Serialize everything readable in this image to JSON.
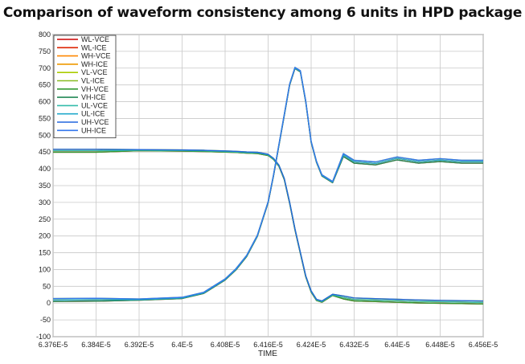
{
  "chart_data": {
    "type": "line",
    "title": "Comparison of waveform consistency among 6 units in HPD package",
    "xlabel": "TIME",
    "ylabel": "",
    "xlim": [
      6.376e-05,
      6.456e-05
    ],
    "ylim": [
      -100,
      800
    ],
    "x_ticks": [
      "6.376E-5",
      "6.384E-5",
      "6.392E-5",
      "6.4E-5",
      "6.408E-5",
      "6.416E-5",
      "6.424E-5",
      "6.432E-5",
      "6.44E-5",
      "6.448E-5",
      "6.456E-5"
    ],
    "y_ticks": [
      -100,
      -50,
      0,
      50,
      100,
      150,
      200,
      250,
      300,
      350,
      400,
      450,
      500,
      550,
      600,
      650,
      700,
      750,
      800
    ],
    "grid": true,
    "legend_position": "top-left",
    "x_shared": [
      6.376e-05,
      6.384e-05,
      6.392e-05,
      6.4e-05,
      6.404e-05,
      6.408e-05,
      6.41e-05,
      6.412e-05,
      6.414e-05,
      6.416e-05,
      6.417e-05,
      6.418e-05,
      6.419e-05,
      6.42e-05,
      6.421e-05,
      6.422e-05,
      6.423e-05,
      6.424e-05,
      6.425e-05,
      6.426e-05,
      6.428e-05,
      6.43e-05,
      6.432e-05,
      6.436e-05,
      6.44e-05,
      6.444e-05,
      6.448e-05,
      6.452e-05,
      6.456e-05
    ],
    "series": [
      {
        "name": "WL-VCE",
        "color": "#cc0000",
        "kind": "vce"
      },
      {
        "name": "WL-ICE",
        "color": "#dd2200",
        "kind": "ice"
      },
      {
        "name": "WH-VCE",
        "color": "#ff8800",
        "kind": "vce"
      },
      {
        "name": "WH-ICE",
        "color": "#ee9900",
        "kind": "ice"
      },
      {
        "name": "VL-VCE",
        "color": "#aacc00",
        "kind": "vce"
      },
      {
        "name": "VL-ICE",
        "color": "#88bb22",
        "kind": "ice"
      },
      {
        "name": "VH-VCE",
        "color": "#339933",
        "kind": "vce"
      },
      {
        "name": "VH-ICE",
        "color": "#228855",
        "kind": "ice"
      },
      {
        "name": "UL-VCE",
        "color": "#33bbaa",
        "kind": "vce"
      },
      {
        "name": "UL-ICE",
        "color": "#22aacc",
        "kind": "ice"
      },
      {
        "name": "UH-VCE",
        "color": "#2266dd",
        "kind": "vce"
      },
      {
        "name": "UH-ICE",
        "color": "#3377ee",
        "kind": "ice"
      }
    ],
    "vce_profile": [
      455,
      455,
      456,
      455,
      454,
      452,
      451,
      449,
      448,
      442,
      430,
      410,
      370,
      300,
      220,
      150,
      80,
      35,
      10,
      5,
      25,
      18,
      12,
      10,
      8,
      6,
      5,
      4,
      3
    ],
    "ice_profile": [
      8,
      9,
      10,
      15,
      30,
      70,
      100,
      140,
      200,
      300,
      380,
      470,
      560,
      650,
      700,
      690,
      600,
      480,
      420,
      380,
      360,
      440,
      420,
      415,
      430,
      420,
      425,
      420,
      420
    ]
  }
}
